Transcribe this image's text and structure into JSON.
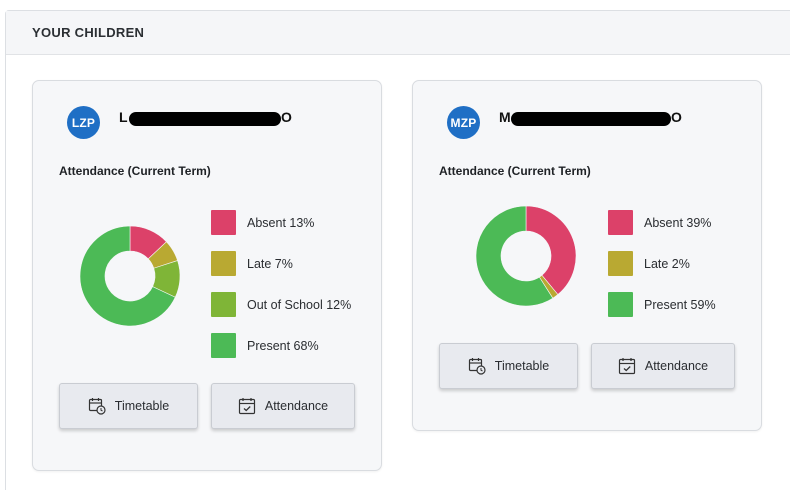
{
  "panel": {
    "title": "YOUR CHILDREN"
  },
  "children": [
    {
      "initials": "LZP",
      "name_first_char": "L",
      "name_last_char": "O",
      "attendance_title": "Attendance (Current Term)",
      "legend": [
        {
          "label": "Absent 13%",
          "value": 13,
          "color": "#dc4169"
        },
        {
          "label": "Late 7%",
          "value": 7,
          "color": "#b9a932"
        },
        {
          "label": "Out of School 12%",
          "value": 12,
          "color": "#7fb537"
        },
        {
          "label": "Present 68%",
          "value": 68,
          "color": "#4cba56"
        }
      ],
      "buttons": {
        "timetable": "Timetable",
        "attendance": "Attendance"
      }
    },
    {
      "initials": "MZP",
      "name_first_char": "M",
      "name_last_char": "O",
      "attendance_title": "Attendance (Current Term)",
      "legend": [
        {
          "label": "Absent 39%",
          "value": 39,
          "color": "#dc4169"
        },
        {
          "label": "Late 2%",
          "value": 2,
          "color": "#b9a932"
        },
        {
          "label": "Present 59%",
          "value": 59,
          "color": "#4cba56"
        }
      ],
      "buttons": {
        "timetable": "Timetable",
        "attendance": "Attendance"
      }
    }
  ]
}
